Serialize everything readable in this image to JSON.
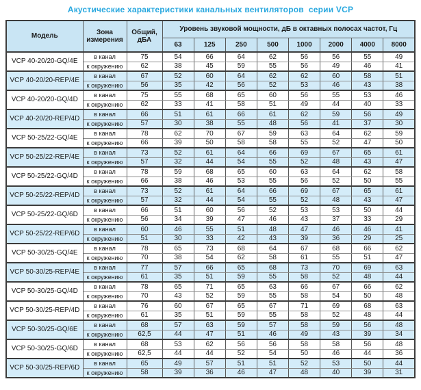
{
  "title": "Акустические характеристики канальных вентиляторов  серии VCP",
  "colors": {
    "title_color": "#29a8df",
    "header_bg": "#c9e5f4",
    "shaded_row_bg": "#d4ecf9",
    "row_bg": "#ffffff",
    "border_dark": "#3c3c3c",
    "border_mid": "#5a5a5a",
    "border_light": "#8c8c8c",
    "text_color": "#1a1a1a"
  },
  "table": {
    "headers": {
      "model": "Модель",
      "zone": "Зона\nизмерения",
      "total": "Общий,\nдБА",
      "band_group": "Уровень звуковой мощности, дБ в октавных полосах частот, Гц",
      "frequencies": [
        "63",
        "125",
        "250",
        "500",
        "1000",
        "2000",
        "4000",
        "8000"
      ]
    },
    "models": [
      {
        "name": "VCP 40-20/20-GQ/4E",
        "shaded": false,
        "rows": [
          {
            "zone": "в канал",
            "total": "75",
            "bands": [
              54,
              66,
              64,
              62,
              56,
              56,
              55,
              49
            ]
          },
          {
            "zone": "к окружению",
            "total": "62",
            "bands": [
              38,
              45,
              59,
              55,
              56,
              49,
              46,
              41
            ]
          }
        ]
      },
      {
        "name": "VCP 40-20/20-REP/4E",
        "shaded": true,
        "rows": [
          {
            "zone": "в канал",
            "total": "67",
            "bands": [
              52,
              60,
              64,
              62,
              62,
              60,
              58,
              51
            ]
          },
          {
            "zone": "к окружению",
            "total": "56",
            "bands": [
              35,
              42,
              56,
              52,
              53,
              46,
              43,
              38
            ]
          }
        ]
      },
      {
        "name": "VCP 40-20/20-GQ/4D",
        "shaded": false,
        "rows": [
          {
            "zone": "в канал",
            "total": "75",
            "bands": [
              55,
              68,
              65,
              60,
              56,
              55,
              53,
              46
            ]
          },
          {
            "zone": "к окружению",
            "total": "62",
            "bands": [
              33,
              41,
              58,
              51,
              49,
              44,
              40,
              33
            ]
          }
        ]
      },
      {
        "name": "VCP 40-20/20-REP/4D",
        "shaded": true,
        "rows": [
          {
            "zone": "в канал",
            "total": "66",
            "bands": [
              51,
              61,
              66,
              61,
              62,
              59,
              56,
              49
            ]
          },
          {
            "zone": "к окружению",
            "total": "57",
            "bands": [
              30,
              38,
              55,
              48,
              56,
              41,
              37,
              30
            ]
          }
        ]
      },
      {
        "name": "VCP 50-25/22-GQ/4E",
        "shaded": false,
        "rows": [
          {
            "zone": "в канал",
            "total": "78",
            "bands": [
              62,
              70,
              67,
              59,
              63,
              64,
              62,
              59
            ]
          },
          {
            "zone": "к окружению",
            "total": "66",
            "bands": [
              39,
              50,
              58,
              58,
              55,
              52,
              47,
              50
            ]
          }
        ]
      },
      {
        "name": "VCP 50-25/22-REP/4E",
        "shaded": true,
        "rows": [
          {
            "zone": "в канал",
            "total": "73",
            "bands": [
              52,
              61,
              64,
              66,
              69,
              67,
              65,
              61
            ]
          },
          {
            "zone": "к окружению",
            "total": "57",
            "bands": [
              32,
              44,
              54,
              55,
              52,
              48,
              43,
              47
            ]
          }
        ]
      },
      {
        "name": "VCP 50-25/22-GQ/4D",
        "shaded": false,
        "rows": [
          {
            "zone": "в канал",
            "total": "78",
            "bands": [
              59,
              68,
              65,
              60,
              63,
              64,
              62,
              58
            ]
          },
          {
            "zone": "к окружению",
            "total": "66",
            "bands": [
              38,
              46,
              53,
              55,
              56,
              52,
              50,
              55
            ]
          }
        ]
      },
      {
        "name": "VCP 50-25/22-REP/4D",
        "shaded": true,
        "rows": [
          {
            "zone": "в канал",
            "total": "73",
            "bands": [
              52,
              61,
              64,
              66,
              69,
              67,
              65,
              61
            ]
          },
          {
            "zone": "к окружению",
            "total": "57",
            "bands": [
              32,
              44,
              54,
              55,
              52,
              48,
              43,
              47
            ]
          }
        ]
      },
      {
        "name": "VCP 50-25/22-GQ/6D",
        "shaded": false,
        "rows": [
          {
            "zone": "в канал",
            "total": "66",
            "bands": [
              51,
              60,
              56,
              52,
              53,
              53,
              50,
              44
            ]
          },
          {
            "zone": "к окружению",
            "total": "56",
            "bands": [
              34,
              39,
              47,
              46,
              43,
              37,
              33,
              29
            ]
          }
        ]
      },
      {
        "name": "VCP 50-25/22-REP/6D",
        "shaded": true,
        "rows": [
          {
            "zone": "в канал",
            "total": "60",
            "bands": [
              46,
              55,
              51,
              48,
              47,
              46,
              46,
              41
            ]
          },
          {
            "zone": "к окружению",
            "total": "51",
            "bands": [
              30,
              33,
              42,
              43,
              39,
              36,
              29,
              25
            ]
          }
        ]
      },
      {
        "name": "VCP 50-30/25-GQ/4E",
        "shaded": false,
        "rows": [
          {
            "zone": "в канал",
            "total": "78",
            "bands": [
              65,
              73,
              68,
              64,
              67,
              68,
              66,
              62
            ]
          },
          {
            "zone": "к окружению",
            "total": "70",
            "bands": [
              38,
              54,
              62,
              58,
              61,
              55,
              51,
              47
            ]
          }
        ]
      },
      {
        "name": "VCP 50-30/25-REP/4E",
        "shaded": true,
        "rows": [
          {
            "zone": "в канал",
            "total": "77",
            "bands": [
              57,
              66,
              65,
              68,
              73,
              70,
              69,
              63
            ]
          },
          {
            "zone": "к окружению",
            "total": "61",
            "bands": [
              35,
              51,
              59,
              55,
              58,
              52,
              48,
              44
            ]
          }
        ]
      },
      {
        "name": "VCP 50-30/25-GQ/4D",
        "shaded": false,
        "rows": [
          {
            "zone": "в канал",
            "total": "78",
            "bands": [
              65,
              71,
              65,
              63,
              66,
              67,
              66,
              62
            ]
          },
          {
            "zone": "к окружению",
            "total": "70",
            "bands": [
              43,
              52,
              59,
              55,
              58,
              54,
              50,
              48
            ]
          }
        ]
      },
      {
        "name": "VCP 50-30/25-REP/4D",
        "shaded": false,
        "rows": [
          {
            "zone": "в канал",
            "total": "76",
            "bands": [
              60,
              67,
              65,
              67,
              71,
              69,
              68,
              63
            ]
          },
          {
            "zone": "к окружению",
            "total": "61",
            "bands": [
              35,
              51,
              59,
              55,
              58,
              52,
              48,
              44
            ]
          }
        ]
      },
      {
        "name": "VCP 50-30/25-GQ/6E",
        "shaded": true,
        "rows": [
          {
            "zone": "в канал",
            "total": "68",
            "bands": [
              57,
              63,
              59,
              57,
              58,
              59,
              56,
              48
            ]
          },
          {
            "zone": "к окружению",
            "total": "62,5",
            "bands": [
              44,
              47,
              51,
              46,
              49,
              43,
              39,
              34
            ]
          }
        ]
      },
      {
        "name": "VCP 50-30/25-GQ/6D",
        "shaded": false,
        "rows": [
          {
            "zone": "в канал",
            "total": "68",
            "bands": [
              53,
              62,
              56,
              56,
              58,
              58,
              56,
              48
            ]
          },
          {
            "zone": "к окружению",
            "total": "62,5",
            "bands": [
              44,
              44,
              52,
              54,
              50,
              46,
              44,
              36
            ]
          }
        ]
      },
      {
        "name": "VCP 50-30/25-REP/6D",
        "shaded": true,
        "rows": [
          {
            "zone": "в канал",
            "total": "65",
            "bands": [
              49,
              57,
              51,
              51,
              52,
              53,
              50,
              44
            ]
          },
          {
            "zone": "к окружению",
            "total": "58",
            "bands": [
              39,
              36,
              46,
              47,
              48,
              40,
              39,
              31
            ]
          }
        ]
      }
    ]
  }
}
